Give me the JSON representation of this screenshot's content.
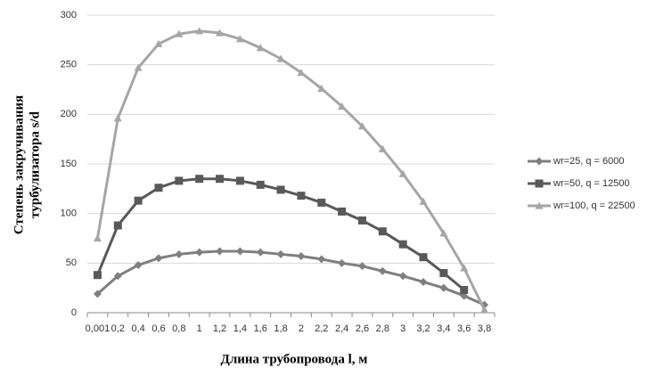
{
  "chart_data": {
    "type": "line",
    "y_label": [
      "Степень закручивания",
      "турбулизатора s/d"
    ],
    "x_label": "Длина трубопровода l, м",
    "categories": [
      "0,001",
      "0,2",
      "0,4",
      "0,6",
      "0,8",
      "1",
      "1,2",
      "1,4",
      "1,6",
      "1,8",
      "2",
      "2,2",
      "2,4",
      "2,6",
      "2,8",
      "3",
      "3,2",
      "3,4",
      "3,6",
      "3,8"
    ],
    "series": [
      {
        "name": "wr=25, q = 6000",
        "color": "#7f7f7f",
        "marker": "diamond",
        "values": [
          19,
          37,
          48,
          55,
          59,
          61,
          62,
          62,
          61,
          59,
          57,
          54,
          50,
          47,
          42,
          37,
          31,
          25,
          17,
          8
        ]
      },
      {
        "name": "wr=50, q = 12500",
        "color": "#595959",
        "marker": "square",
        "values": [
          38,
          88,
          113,
          126,
          133,
          135,
          135,
          133,
          129,
          124,
          118,
          111,
          102,
          93,
          82,
          69,
          56,
          40,
          23,
          null
        ]
      },
      {
        "name": "wr=100, q = 22500",
        "color": "#a6a6a6",
        "marker": "triangle",
        "values": [
          75,
          196,
          247,
          271,
          281,
          284,
          282,
          276,
          267,
          256,
          242,
          226,
          208,
          188,
          165,
          140,
          112,
          80,
          45,
          3
        ]
      }
    ],
    "ylim": [
      0,
      300
    ],
    "yticks": [
      0,
      50,
      100,
      150,
      200,
      250,
      300
    ],
    "grid": true,
    "legend": "right"
  }
}
